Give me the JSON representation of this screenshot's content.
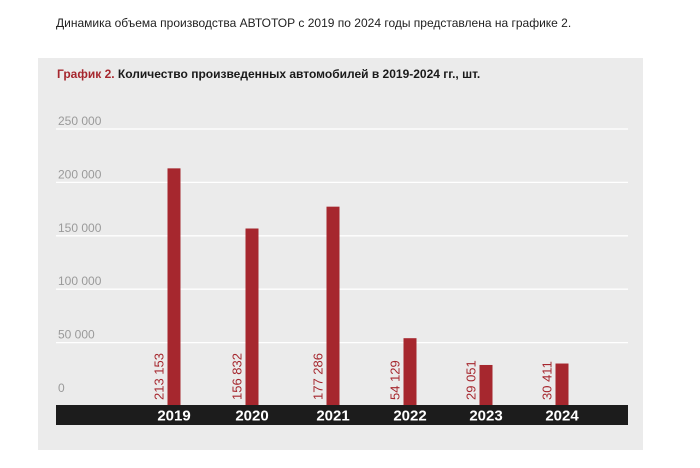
{
  "intro_text": "Динамика объема производства АВТОТОР с 2019 по 2024 годы представлена на графике 2.",
  "colors": {
    "bar": "#a6272e",
    "panel": "#ebebeb",
    "gridline": "#ffffff",
    "axis_band": "#1c1c1c"
  },
  "chart_data": {
    "type": "bar",
    "title_prefix": "График 2.",
    "title": "Количество произведенных автомобилей в 2019-2024 гг., шт.",
    "categories": [
      "2019",
      "2020",
      "2021",
      "2022",
      "2023",
      "2024"
    ],
    "values": [
      213153,
      156832,
      177286,
      54129,
      29051,
      30411
    ],
    "value_labels": [
      "213 153",
      "156 832",
      "177 286",
      "54 129",
      "29 051",
      "30 411"
    ],
    "yticks": [
      0,
      50000,
      100000,
      150000,
      200000,
      250000
    ],
    "ytick_labels": [
      "0",
      "50 000",
      "100 000",
      "150 000",
      "200 000",
      "250 000"
    ],
    "ylim": [
      0,
      250000
    ],
    "grid": true,
    "legend": "none"
  }
}
